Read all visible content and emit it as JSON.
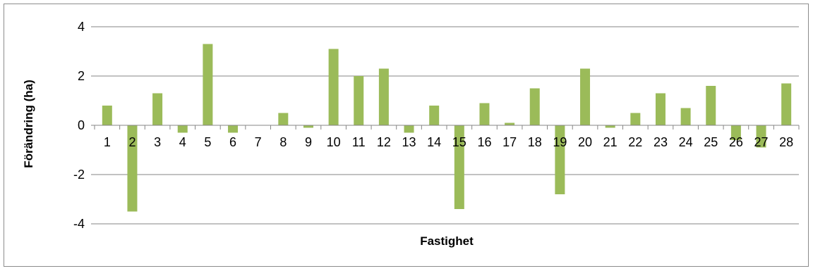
{
  "chart_data": {
    "type": "bar",
    "title": "",
    "xlabel": "Fastighet",
    "ylabel": "Förändring (ha)",
    "categories": [
      "1",
      "2",
      "3",
      "4",
      "5",
      "6",
      "7",
      "8",
      "9",
      "10",
      "11",
      "12",
      "13",
      "14",
      "15",
      "16",
      "17",
      "18",
      "19",
      "20",
      "21",
      "22",
      "23",
      "24",
      "25",
      "26",
      "27",
      "28"
    ],
    "values": [
      0.8,
      -3.5,
      1.3,
      -0.3,
      3.3,
      -0.3,
      0,
      0.5,
      -0.1,
      3.1,
      2.0,
      2.3,
      -0.3,
      0.8,
      -3.4,
      0.9,
      0.1,
      1.5,
      -2.8,
      2.3,
      -0.1,
      0.5,
      1.3,
      0.7,
      1.6,
      -0.6,
      -0.9,
      1.7
    ],
    "ylim": [
      -4,
      4
    ],
    "yticks": [
      -4,
      -2,
      0,
      2,
      4
    ],
    "grid": true,
    "legend": "none",
    "colors": {
      "bar": "#9bbb59",
      "grid": "#868686",
      "axis": "#868686",
      "border": "#8c8c8c"
    }
  }
}
